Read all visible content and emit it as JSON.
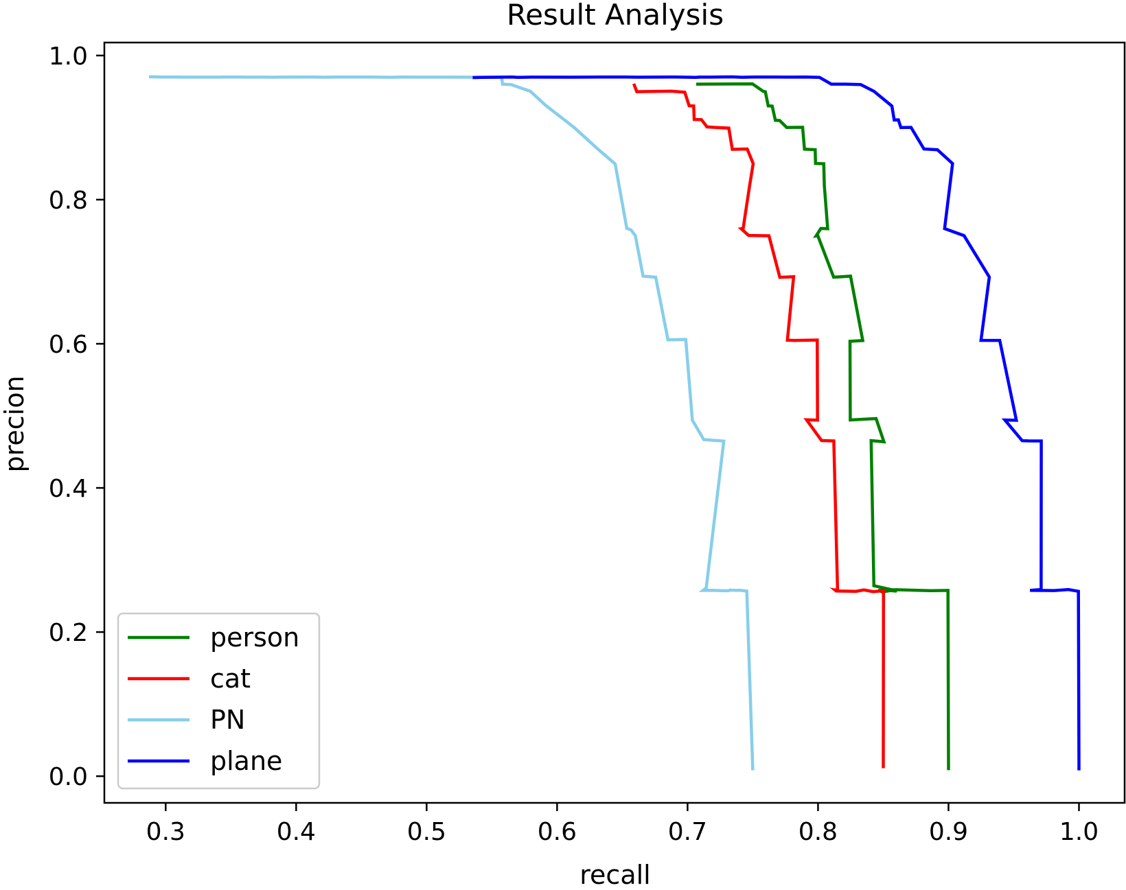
{
  "chart_data": {
    "type": "line",
    "title": "Result Analysis",
    "xlabel": "recall",
    "ylabel": "precion",
    "xlim": [
      0.253,
      1.035
    ],
    "ylim": [
      -0.037,
      1.018
    ],
    "xticks": [
      "0.3",
      "0.4",
      "0.5",
      "0.6",
      "0.7",
      "0.8",
      "0.9",
      "1.0"
    ],
    "yticks": [
      "0.0",
      "0.2",
      "0.4",
      "0.6",
      "0.8",
      "1.0"
    ],
    "legend_position": "lower-left",
    "grid": false,
    "series": [
      {
        "name": "person",
        "color": "#008000",
        "x": [
          0.7066,
          0.7332,
          0.7497,
          0.7581,
          0.7596,
          0.7618,
          0.7649,
          0.7673,
          0.7706,
          0.776,
          0.7882,
          0.7896,
          0.7978,
          0.7981,
          0.8044,
          0.8048,
          0.8074,
          0.8022,
          0.7985,
          0.7998,
          0.812,
          0.8163,
          0.8249,
          0.8343,
          0.8245,
          0.8247,
          0.8445,
          0.8505,
          0.8407,
          0.8428,
          0.8603,
          0.8595,
          0.8554,
          0.8492,
          0.8463,
          0.8598,
          0.8852,
          0.8883,
          0.8996,
          0.9
        ],
        "y": [
          0.9603,
          0.9605,
          0.9607,
          0.9502,
          0.9497,
          0.9302,
          0.9298,
          0.9101,
          0.9098,
          0.9002,
          0.9004,
          0.87,
          0.8694,
          0.8502,
          0.8498,
          0.8198,
          0.7597,
          0.7601,
          0.7497,
          0.7501,
          0.6925,
          0.6928,
          0.6939,
          0.6045,
          0.6034,
          0.4943,
          0.4962,
          0.464,
          0.4656,
          0.2643,
          0.2571,
          0.2568,
          0.2576,
          0.2556,
          0.258,
          0.2587,
          0.2574,
          0.2574,
          0.2578,
          0.0083
        ]
      },
      {
        "name": "cat",
        "color": "#ff0000",
        "x": [
          0.6588,
          0.6611,
          0.6828,
          0.6877,
          0.6979,
          0.7012,
          0.7047,
          0.7051,
          0.7106,
          0.7149,
          0.7216,
          0.7316,
          0.7343,
          0.7457,
          0.7503,
          0.7475,
          0.7426,
          0.7411,
          0.7468,
          0.7624,
          0.7707,
          0.7813,
          0.7765,
          0.782,
          0.7994,
          0.7996,
          0.7912,
          0.8027,
          0.8066,
          0.8121,
          0.815,
          0.8135,
          0.8137,
          0.8131,
          0.814,
          0.8291,
          0.8352,
          0.8422,
          0.8502,
          0.85
        ],
        "y": [
          0.9609,
          0.9498,
          0.9504,
          0.9505,
          0.9491,
          0.9303,
          0.93,
          0.9113,
          0.9111,
          0.901,
          0.9002,
          0.8993,
          0.8698,
          0.8703,
          0.85,
          0.8188,
          0.7602,
          0.7597,
          0.7503,
          0.7499,
          0.6922,
          0.6931,
          0.605,
          0.6047,
          0.6052,
          0.4941,
          0.4945,
          0.4657,
          0.4656,
          0.4652,
          0.2584,
          0.2585,
          0.2581,
          0.2583,
          0.2569,
          0.2566,
          0.2585,
          0.2561,
          0.2574,
          0.0111
        ]
      },
      {
        "name": "PN",
        "color": "#87ceeb",
        "x": [
          0.2872,
          0.2969,
          0.3063,
          0.3096,
          0.3111,
          0.3287,
          0.3426,
          0.3437,
          0.3555,
          0.3603,
          0.3662,
          0.3745,
          0.3839,
          0.387,
          0.4125,
          0.4213,
          0.4341,
          0.4569,
          0.4735,
          0.4799,
          0.4888,
          0.5143,
          0.5369,
          0.5575,
          0.5582,
          0.5647,
          0.5794,
          0.591,
          0.6131,
          0.6308,
          0.6445,
          0.6534,
          0.6568,
          0.66,
          0.6659,
          0.6756,
          0.685,
          0.6986,
          0.7037,
          0.7124,
          0.7278,
          0.7143,
          0.712,
          0.7186,
          0.7279,
          0.7313,
          0.7325,
          0.7376,
          0.7399,
          0.7454,
          0.75
        ],
        "y": [
          0.9705,
          0.9702,
          0.9702,
          0.9701,
          0.97,
          0.97,
          0.97,
          0.9701,
          0.9702,
          0.97,
          0.97,
          0.97,
          0.9699,
          0.97,
          0.9701,
          0.9699,
          0.9702,
          0.9702,
          0.9698,
          0.9701,
          0.97,
          0.97,
          0.9699,
          0.9697,
          0.9603,
          0.9597,
          0.9505,
          0.9312,
          0.9,
          0.871,
          0.8496,
          0.7603,
          0.7578,
          0.75,
          0.6939,
          0.6924,
          0.6055,
          0.606,
          0.4941,
          0.4671,
          0.465,
          0.2611,
          0.2579,
          0.258,
          0.2573,
          0.2573,
          0.2583,
          0.2578,
          0.2581,
          0.2568,
          0.0081
        ]
      },
      {
        "name": "plane",
        "color": "#0000ff",
        "x": [
          0.5353,
          0.542,
          0.5656,
          0.5699,
          0.5804,
          0.6102,
          0.6248,
          0.6322,
          0.6394,
          0.6525,
          0.6617,
          0.6863,
          0.6911,
          0.7062,
          0.7094,
          0.7175,
          0.7341,
          0.7417,
          0.7518,
          0.7671,
          0.778,
          0.7903,
          0.8011,
          0.8102,
          0.8211,
          0.8327,
          0.8429,
          0.8566,
          0.8584,
          0.8616,
          0.8635,
          0.8713,
          0.8812,
          0.8915,
          0.9031,
          0.897,
          0.9119,
          0.9313,
          0.9249,
          0.9393,
          0.952,
          0.9432,
          0.9565,
          0.9612,
          0.9711,
          0.971,
          0.9625,
          0.9811,
          0.9919,
          0.9996,
          1.0
        ],
        "y": [
          0.9693,
          0.9697,
          0.9702,
          0.9697,
          0.97,
          0.9699,
          0.97,
          0.9701,
          0.9702,
          0.9701,
          0.9699,
          0.9701,
          0.9702,
          0.9697,
          0.97,
          0.97,
          0.9704,
          0.9698,
          0.9701,
          0.9702,
          0.97,
          0.9701,
          0.9697,
          0.9603,
          0.9603,
          0.9597,
          0.9503,
          0.9299,
          0.9106,
          0.9107,
          0.9,
          0.9003,
          0.8703,
          0.8693,
          0.85,
          0.7599,
          0.7501,
          0.6926,
          0.6048,
          0.6047,
          0.4939,
          0.4942,
          0.4656,
          0.4653,
          0.4652,
          0.259,
          0.2578,
          0.2576,
          0.259,
          0.2566,
          0.0081
        ]
      }
    ]
  }
}
